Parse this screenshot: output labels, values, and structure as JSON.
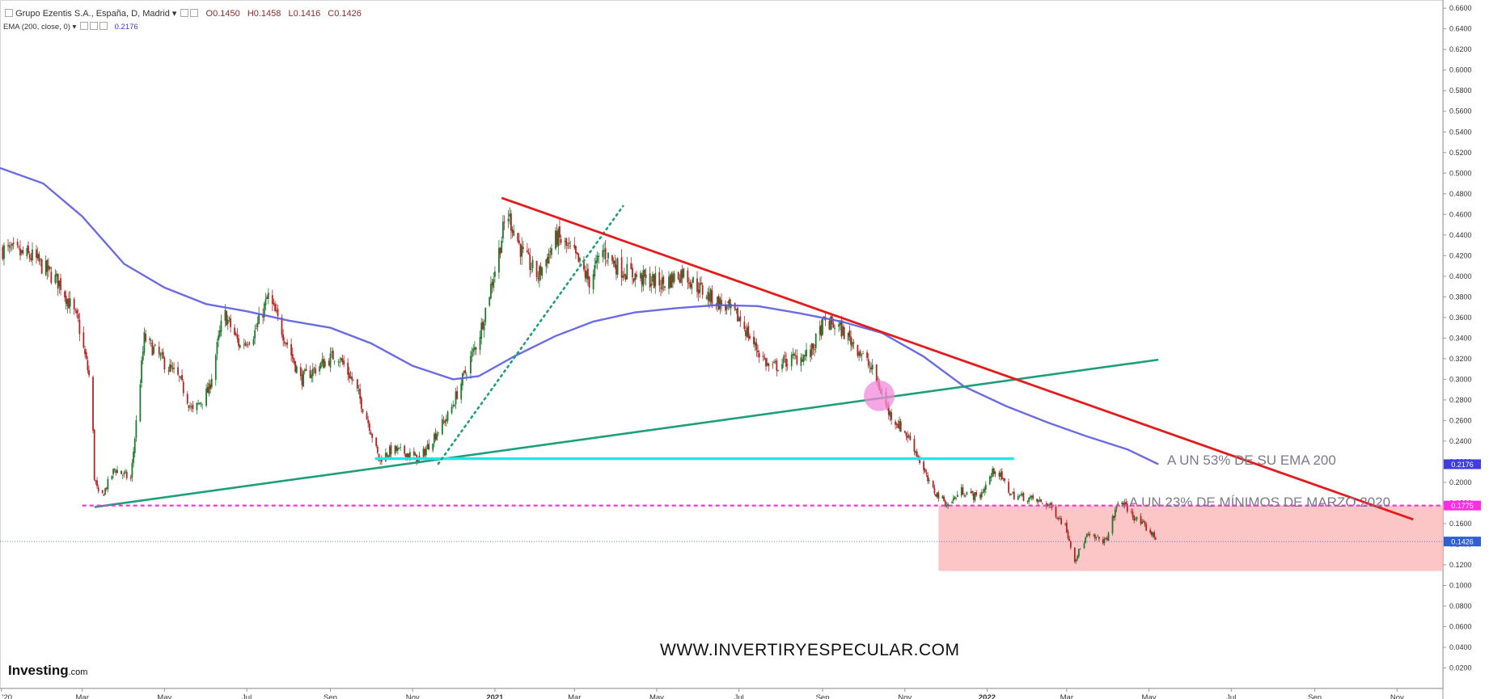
{
  "header": {
    "symbol": "Grupo Ezentis S.A., España, D, Madrid",
    "open": "O0.1450",
    "high": "H0.1458",
    "low": "L0.1416",
    "close": "C0.1426",
    "indicator": "EMA (200, close, 0)",
    "indicator_value": "0.2176"
  },
  "annotations": {
    "ema_note": "A UN 53% DE SU EMA 200",
    "min_note": "A UN 23% DE MÍNIMOS DE MARZO  2020",
    "watermark": "WWW.INVERTIRYESPECULAR.COM",
    "logo": "Investing",
    "logo_suffix": ".com"
  },
  "colors": {
    "candle_up": "#1f7a2e",
    "candle_down": "#b12424",
    "ema": "#5b5be0",
    "downtrend": "#e31b1b",
    "uptrend": "#1e9e7a",
    "support": "#20e6e6",
    "march_low_line": "#ff2ee0",
    "zone": "#fbbcbc",
    "highlight": "#f08ad8"
  },
  "chart_data": {
    "type": "candlestick",
    "title": "Grupo Ezentis S.A., España, D, Madrid",
    "x_ticks": [
      "'20",
      "Mar",
      "May",
      "Jul",
      "Sep",
      "Nov",
      "2021",
      "Mar",
      "May",
      "Jul",
      "Sep",
      "Nov",
      "2022",
      "Mar",
      "May",
      "Jul",
      "Sep",
      "Nov"
    ],
    "x_tick_dates": [
      "2020-01-01",
      "2020-03-01",
      "2020-05-01",
      "2020-07-01",
      "2020-09-01",
      "2020-11-01",
      "2021-01-01",
      "2021-03-01",
      "2021-05-01",
      "2021-07-01",
      "2021-09-01",
      "2021-11-01",
      "2022-01-01",
      "2022-03-01",
      "2022-05-01",
      "2022-07-01",
      "2022-09-01",
      "2022-11-01"
    ],
    "x_range": [
      "2019-12-31",
      "2022-12-05"
    ],
    "y_ticks": [
      "0.6600",
      "0.6400",
      "0.6200",
      "0.6000",
      "0.5800",
      "0.5600",
      "0.5400",
      "0.5200",
      "0.5000",
      "0.4800",
      "0.4600",
      "0.4400",
      "0.4200",
      "0.4000",
      "0.3800",
      "0.3600",
      "0.3400",
      "0.3200",
      "0.3000",
      "0.2800",
      "0.2600",
      "0.2400",
      "0.2200",
      "0.2000",
      "0.1800",
      "0.1600",
      "0.1400",
      "0.1200",
      "0.1000",
      "0.0800",
      "0.0600",
      "0.0400",
      "0.0200"
    ],
    "ylim": [
      0,
      0.668
    ],
    "price_labels": [
      {
        "value": 0.2176,
        "text": "0.2176",
        "color": "#3d3de0"
      },
      {
        "value": 0.1775,
        "text": "0.1775",
        "color": "#ff2ee0"
      },
      {
        "value": 0.1426,
        "text": "0.1426",
        "color": "#2f5fd0"
      }
    ],
    "last_close": 0.1426,
    "price_path": [
      [
        "2020-01-02",
        0.426
      ],
      [
        "2020-01-25",
        0.418
      ],
      [
        "2020-02-14",
        0.392
      ],
      [
        "2020-02-27",
        0.355
      ],
      [
        "2020-03-08",
        0.29
      ],
      [
        "2020-03-10",
        0.205
      ],
      [
        "2020-03-14",
        0.182
      ],
      [
        "2020-03-25",
        0.213
      ],
      [
        "2020-04-06",
        0.203
      ],
      [
        "2020-04-16",
        0.34
      ],
      [
        "2020-05-01",
        0.316
      ],
      [
        "2020-05-12",
        0.3
      ],
      [
        "2020-05-22",
        0.268
      ],
      [
        "2020-06-03",
        0.29
      ],
      [
        "2020-06-14",
        0.365
      ],
      [
        "2020-06-26",
        0.332
      ],
      [
        "2020-07-07",
        0.346
      ],
      [
        "2020-07-17",
        0.38
      ],
      [
        "2020-07-30",
        0.338
      ],
      [
        "2020-08-10",
        0.3
      ],
      [
        "2020-08-26",
        0.315
      ],
      [
        "2020-09-06",
        0.325
      ],
      [
        "2020-09-19",
        0.295
      ],
      [
        "2020-09-30",
        0.255
      ],
      [
        "2020-10-07",
        0.222
      ],
      [
        "2020-10-17",
        0.232
      ],
      [
        "2020-10-28",
        0.228
      ],
      [
        "2020-11-06",
        0.222
      ],
      [
        "2020-11-17",
        0.245
      ],
      [
        "2020-11-28",
        0.266
      ],
      [
        "2020-12-08",
        0.3
      ],
      [
        "2020-12-20",
        0.34
      ],
      [
        "2021-01-03",
        0.418
      ],
      [
        "2021-01-10",
        0.463
      ],
      [
        "2021-01-22",
        0.42
      ],
      [
        "2021-02-02",
        0.4
      ],
      [
        "2021-02-16",
        0.438
      ],
      [
        "2021-03-01",
        0.42
      ],
      [
        "2021-03-12",
        0.395
      ],
      [
        "2021-03-22",
        0.425
      ],
      [
        "2021-04-03",
        0.408
      ],
      [
        "2021-04-19",
        0.398
      ],
      [
        "2021-05-06",
        0.393
      ],
      [
        "2021-05-20",
        0.404
      ],
      [
        "2021-06-06",
        0.383
      ],
      [
        "2021-06-21",
        0.37
      ],
      [
        "2021-07-02",
        0.358
      ],
      [
        "2021-07-11",
        0.336
      ],
      [
        "2021-07-24",
        0.31
      ],
      [
        "2021-08-06",
        0.318
      ],
      [
        "2021-08-23",
        0.325
      ],
      [
        "2021-09-02",
        0.355
      ],
      [
        "2021-09-12",
        0.352
      ],
      [
        "2021-09-26",
        0.332
      ],
      [
        "2021-10-09",
        0.306
      ],
      [
        "2021-10-20",
        0.268
      ],
      [
        "2021-11-06",
        0.24
      ],
      [
        "2021-11-20",
        0.195
      ],
      [
        "2021-12-03",
        0.178
      ],
      [
        "2021-12-13",
        0.192
      ],
      [
        "2021-12-26",
        0.185
      ],
      [
        "2022-01-07",
        0.214
      ],
      [
        "2022-01-19",
        0.188
      ],
      [
        "2022-01-31",
        0.185
      ],
      [
        "2022-02-16",
        0.178
      ],
      [
        "2022-02-28",
        0.158
      ],
      [
        "2022-03-07",
        0.125
      ],
      [
        "2022-03-16",
        0.148
      ],
      [
        "2022-03-30",
        0.143
      ],
      [
        "2022-04-09",
        0.184
      ],
      [
        "2022-04-21",
        0.165
      ],
      [
        "2022-05-02",
        0.152
      ],
      [
        "2022-05-08",
        0.1426
      ]
    ],
    "ema200": [
      [
        "2019-12-31",
        0.505
      ],
      [
        "2020-02-01",
        0.49
      ],
      [
        "2020-03-01",
        0.458
      ],
      [
        "2020-04-01",
        0.412
      ],
      [
        "2020-05-01",
        0.389
      ],
      [
        "2020-06-01",
        0.373
      ],
      [
        "2020-07-01",
        0.366
      ],
      [
        "2020-08-01",
        0.357
      ],
      [
        "2020-09-01",
        0.35
      ],
      [
        "2020-10-01",
        0.335
      ],
      [
        "2020-11-01",
        0.313
      ],
      [
        "2020-12-01",
        0.3
      ],
      [
        "2020-12-20",
        0.303
      ],
      [
        "2021-01-15",
        0.322
      ],
      [
        "2021-02-15",
        0.342
      ],
      [
        "2021-03-15",
        0.356
      ],
      [
        "2021-04-15",
        0.365
      ],
      [
        "2021-05-15",
        0.369
      ],
      [
        "2021-06-15",
        0.372
      ],
      [
        "2021-07-15",
        0.371
      ],
      [
        "2021-08-15",
        0.364
      ],
      [
        "2021-09-15",
        0.356
      ],
      [
        "2021-10-15",
        0.345
      ],
      [
        "2021-11-15",
        0.322
      ],
      [
        "2021-12-15",
        0.293
      ],
      [
        "2022-01-15",
        0.274
      ],
      [
        "2022-02-15",
        0.258
      ],
      [
        "2022-03-15",
        0.245
      ],
      [
        "2022-04-15",
        0.232
      ],
      [
        "2022-05-08",
        0.2176
      ]
    ],
    "drawings": {
      "downtrend": [
        [
          "2021-01-06",
          0.476
        ],
        [
          "2022-11-13",
          0.164
        ]
      ],
      "uptrend": [
        [
          "2020-03-10",
          0.176
        ],
        [
          "2022-05-08",
          0.319
        ]
      ],
      "support": [
        [
          "2020-10-04",
          0.223
        ],
        [
          "2022-01-21",
          0.223
        ]
      ],
      "march_low": [
        [
          "2020-03-01",
          0.1775
        ],
        [
          "2022-12-05",
          0.1775
        ]
      ],
      "dotted_trend": [
        [
          "2020-11-20",
          0.218
        ],
        [
          "2021-04-06",
          0.468
        ]
      ],
      "zone": [
        [
          "2021-11-26",
          0.1775
        ],
        [
          "2022-12-05",
          0.114
        ]
      ],
      "highlight_circle": [
        "2021-10-13",
        0.284
      ]
    },
    "grid": false,
    "legend": "none"
  }
}
